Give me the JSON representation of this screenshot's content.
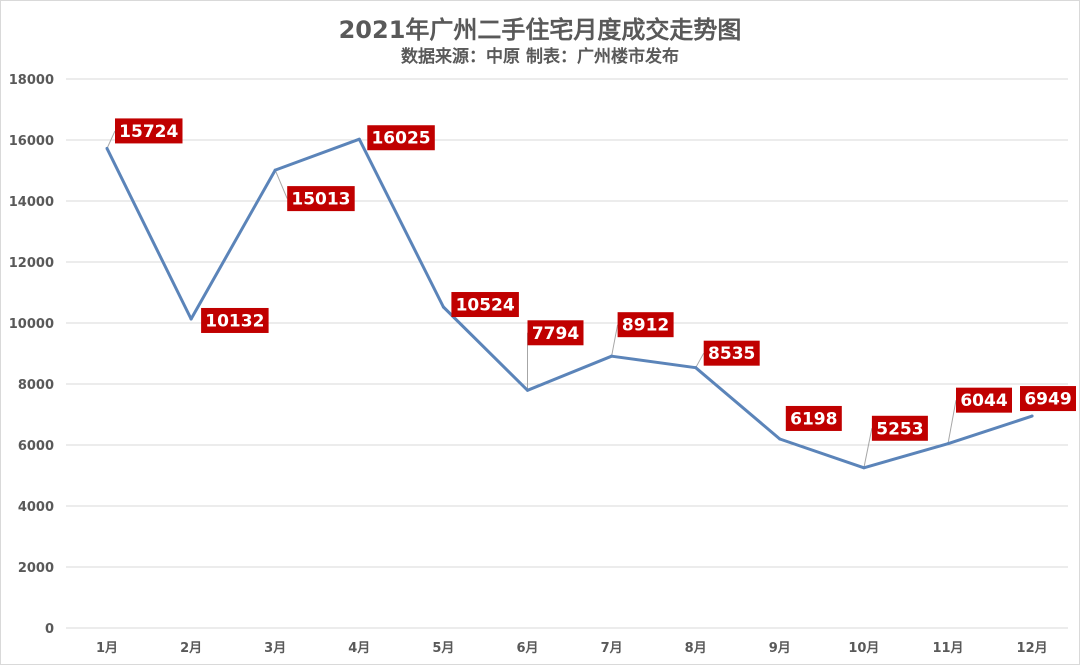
{
  "title": "2021年广州二手住宅月度成交走势图",
  "subtitle": "数据来源：中原 制表：广州楼市发布",
  "colors": {
    "line": "#5B84B9",
    "label_bg": "#C00000",
    "label_text": "#FFFFFF",
    "grid": "#D9D9D9",
    "text": "#595959"
  },
  "chart_data": {
    "type": "line",
    "title": "2021年广州二手住宅月度成交走势图",
    "subtitle": "数据来源：中原 制表：广州楼市发布",
    "categories": [
      "1月",
      "2月",
      "3月",
      "4月",
      "5月",
      "6月",
      "7月",
      "8月",
      "9月",
      "10月",
      "11月",
      "12月"
    ],
    "series": [
      {
        "values": [
          15724,
          10132,
          15013,
          16025,
          10524,
          7794,
          8912,
          8535,
          6198,
          5253,
          6044,
          6949
        ]
      }
    ],
    "ylim": [
      0,
      18000
    ],
    "yticks": [
      0,
      2000,
      4000,
      6000,
      8000,
      10000,
      12000,
      14000,
      16000,
      18000
    ],
    "grid": "horizontal",
    "legend": "none",
    "data_labels": true
  }
}
